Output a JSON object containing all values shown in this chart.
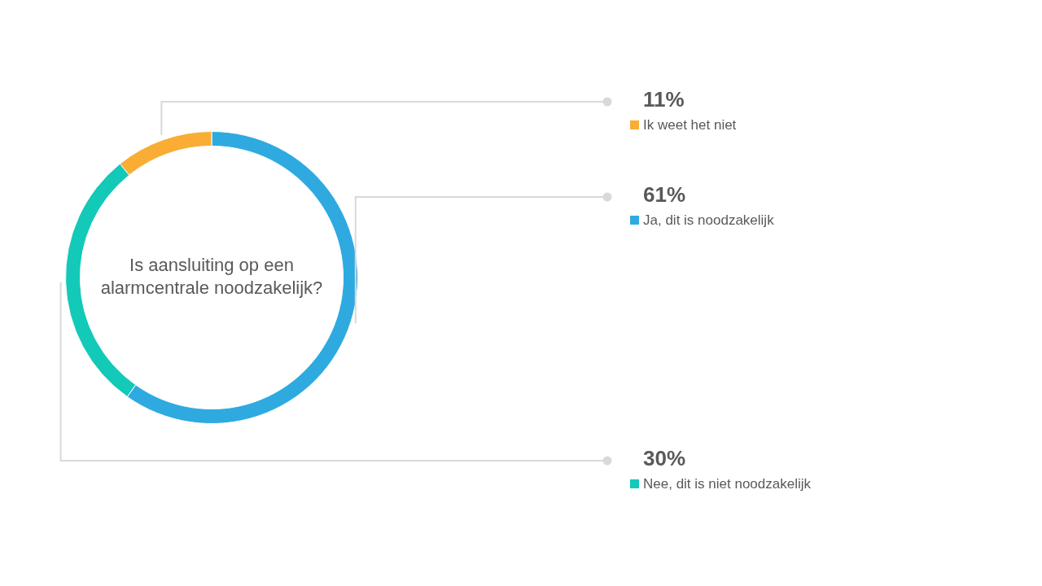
{
  "chart_data": {
    "type": "donut",
    "title": "Is aansluiting op een alarmcentrale noodzakelijk?",
    "categories": [
      "Ja, dit is noodzakelijk",
      "Nee, dit is niet noodzakelijk",
      "Ik weet het niet"
    ],
    "values": [
      61,
      30,
      11
    ],
    "colors": [
      "#2eaae1",
      "#13c9b8",
      "#f9ad35"
    ],
    "value_labels": [
      "61%",
      "30%",
      "11%"
    ],
    "legend": "right"
  }
}
